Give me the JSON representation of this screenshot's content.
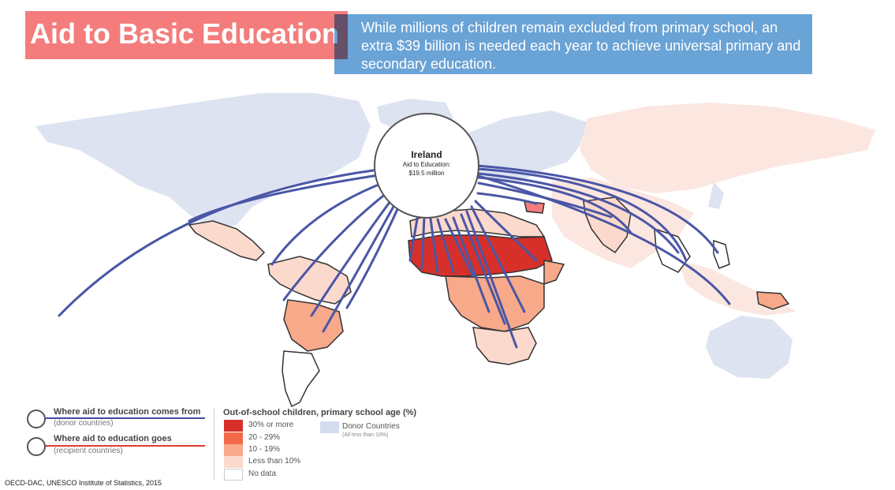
{
  "title": "Aid to Basic Education",
  "subtitle": "While millions of children remain excluded from primary school, an extra $39 billion is needed each year to achieve universal primary and secondary education.",
  "focus_country": {
    "name": "Ireland",
    "aid_label": "Aid to Education:",
    "aid_value": "$19.5 million"
  },
  "legend": {
    "comes_from": {
      "title": "Where aid to education comes from",
      "sub": "(donor countries)",
      "color": "#3f4aa0"
    },
    "goes": {
      "title": "Where aid to education  goes",
      "sub": "(recipient countries)",
      "color": "#e03a2e"
    },
    "choropleth_title": "Out-of-school children, primary school age (%)",
    "bins": [
      {
        "label": "30% or more",
        "color": "#d7302a"
      },
      {
        "label": "20 - 29%",
        "color": "#f4694a"
      },
      {
        "label": "10 - 19%",
        "color": "#f7a98a"
      },
      {
        "label": "Less than 10%",
        "color": "#fbd9cc"
      },
      {
        "label": "No data",
        "color": "#ffffff"
      }
    ],
    "donor": {
      "label": "Donor Countries",
      "sub": "(All less than 10%)",
      "color": "#d4dcf0"
    }
  },
  "source": "OECD-DAC, UNESCO Institute of Statistics, 2015",
  "colors": {
    "flow_line": "#4a56a6",
    "donor_fill": "#dde3f1",
    "land_pale": "#fbe6e0"
  }
}
